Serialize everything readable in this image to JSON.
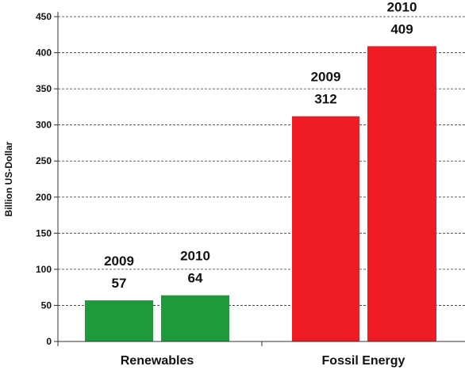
{
  "chart_data": {
    "type": "bar",
    "ylabel": "Billion US-Dollar",
    "ylim": [
      0,
      450
    ],
    "yticks": [
      0,
      50,
      100,
      150,
      200,
      250,
      300,
      350,
      400,
      450
    ],
    "grid": true,
    "groups": [
      {
        "category": "Renewables",
        "color": "#1e9a3c",
        "bars": [
          {
            "year": "2009",
            "value": 57
          },
          {
            "year": "2010",
            "value": 64
          }
        ]
      },
      {
        "category": "Fossil Energy",
        "color": "#ee1c25",
        "bars": [
          {
            "year": "2009",
            "value": 312
          },
          {
            "year": "2010",
            "value": 409
          }
        ]
      }
    ]
  }
}
